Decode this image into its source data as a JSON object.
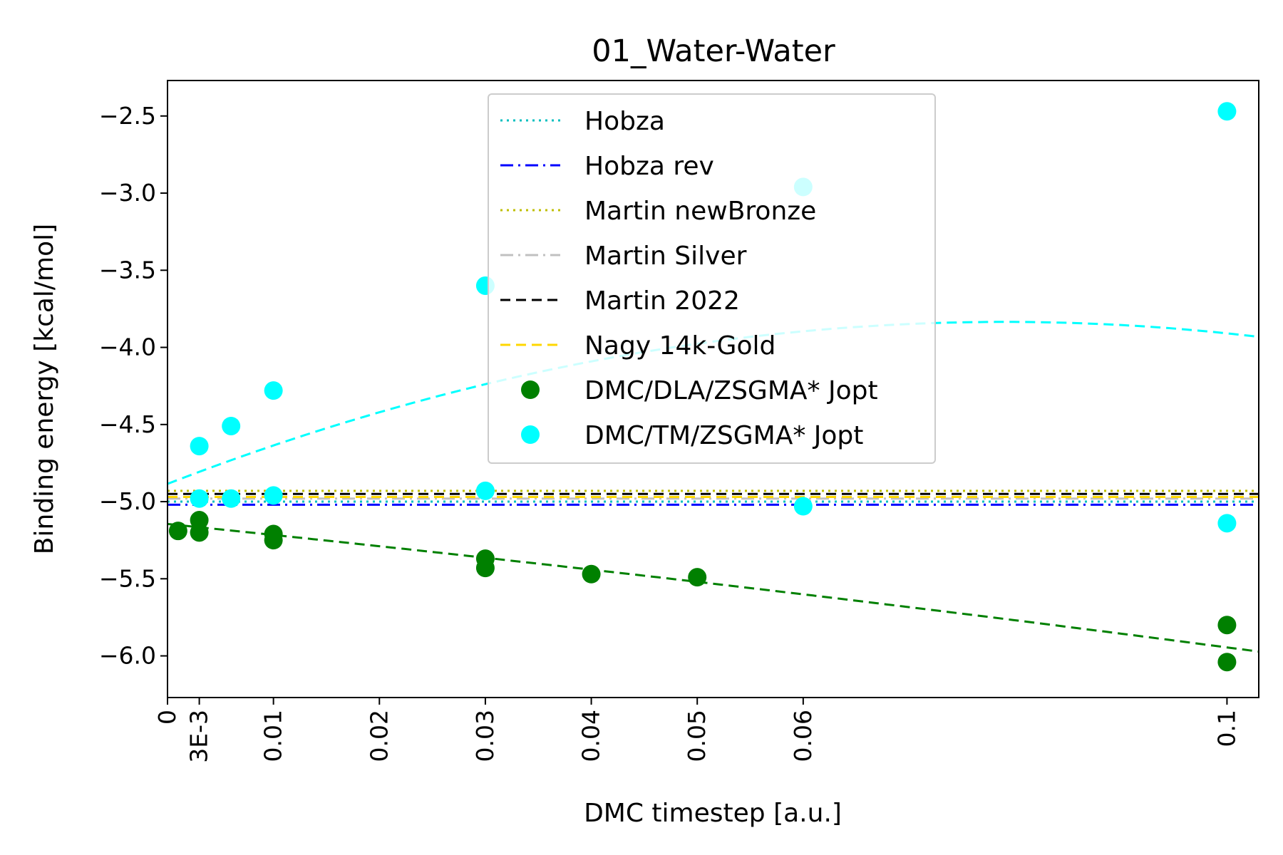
{
  "chart_data": {
    "type": "scatter",
    "title": "01_Water-Water",
    "xlabel": "DMC timestep [a.u.]",
    "ylabel": "Binding energy [kcal/mol]",
    "xlim": [
      0,
      0.103
    ],
    "ylim": [
      -6.27,
      -2.27
    ],
    "x_ticks": [
      {
        "value": 0,
        "label": "0"
      },
      {
        "value": 0.003,
        "label": "3E-3"
      },
      {
        "value": 0.01,
        "label": "0.01"
      },
      {
        "value": 0.02,
        "label": "0.02"
      },
      {
        "value": 0.03,
        "label": "0.03"
      },
      {
        "value": 0.04,
        "label": "0.04"
      },
      {
        "value": 0.05,
        "label": "0.05"
      },
      {
        "value": 0.06,
        "label": "0.06"
      },
      {
        "value": 0.1,
        "label": "0.1"
      }
    ],
    "y_ticks": [
      {
        "value": -2.5,
        "label": "−2.5"
      },
      {
        "value": -3.0,
        "label": "−3.0"
      },
      {
        "value": -3.5,
        "label": "−3.5"
      },
      {
        "value": -4.0,
        "label": "−4.0"
      },
      {
        "value": -4.5,
        "label": "−4.5"
      },
      {
        "value": -5.0,
        "label": "−5.0"
      },
      {
        "value": -5.5,
        "label": "−5.5"
      },
      {
        "value": -6.0,
        "label": "−6.0"
      }
    ],
    "grid": false,
    "legend_position": "upper center",
    "reference_lines": [
      {
        "name": "Hobza",
        "value": -5.0,
        "color": "#00bfbf",
        "style": "dotted"
      },
      {
        "name": "Hobza rev",
        "value": -5.02,
        "color": "#0000ff",
        "style": "dashdot"
      },
      {
        "name": "Martin newBronze",
        "value": -4.93,
        "color": "#bfbf00",
        "style": "dotted"
      },
      {
        "name": "Martin Silver",
        "value": -4.98,
        "color": "#c0c0c0",
        "style": "dashdot"
      },
      {
        "name": "Martin 2022",
        "value": -4.95,
        "color": "#000000",
        "style": "dashed"
      },
      {
        "name": "Nagy 14k-Gold",
        "value": -4.97,
        "color": "#ffd700",
        "style": "dashed"
      }
    ],
    "series": [
      {
        "name": "DMC/DLA/ZSGMA* Jopt",
        "color": "#008000",
        "x": [
          0.001,
          0.003,
          0.003,
          0.01,
          0.01,
          0.03,
          0.03,
          0.04,
          0.05,
          0.1,
          0.1
        ],
        "y": [
          -5.19,
          -5.12,
          -5.2,
          -5.21,
          -5.25,
          -5.37,
          -5.43,
          -5.47,
          -5.49,
          -5.8,
          -6.04
        ],
        "fit": {
          "type": "quadratic",
          "coeffs": [
            -5.145,
            -7.0,
            -10.0
          ]
        }
      },
      {
        "name": "DMC/TM/ZSGMA* Jopt",
        "color": "#00ffff",
        "x": [
          0.003,
          0.003,
          0.006,
          0.006,
          0.01,
          0.01,
          0.03,
          0.03,
          0.06,
          0.06,
          0.1,
          0.1
        ],
        "y": [
          -4.64,
          -4.98,
          -4.51,
          -4.98,
          -4.28,
          -4.96,
          -3.6,
          -4.93,
          -2.96,
          -5.03,
          -2.47,
          -5.14
        ],
        "fit": {
          "type": "quadratic",
          "coeffs": [
            -4.885,
            26.58,
            -168.2
          ]
        }
      }
    ]
  }
}
